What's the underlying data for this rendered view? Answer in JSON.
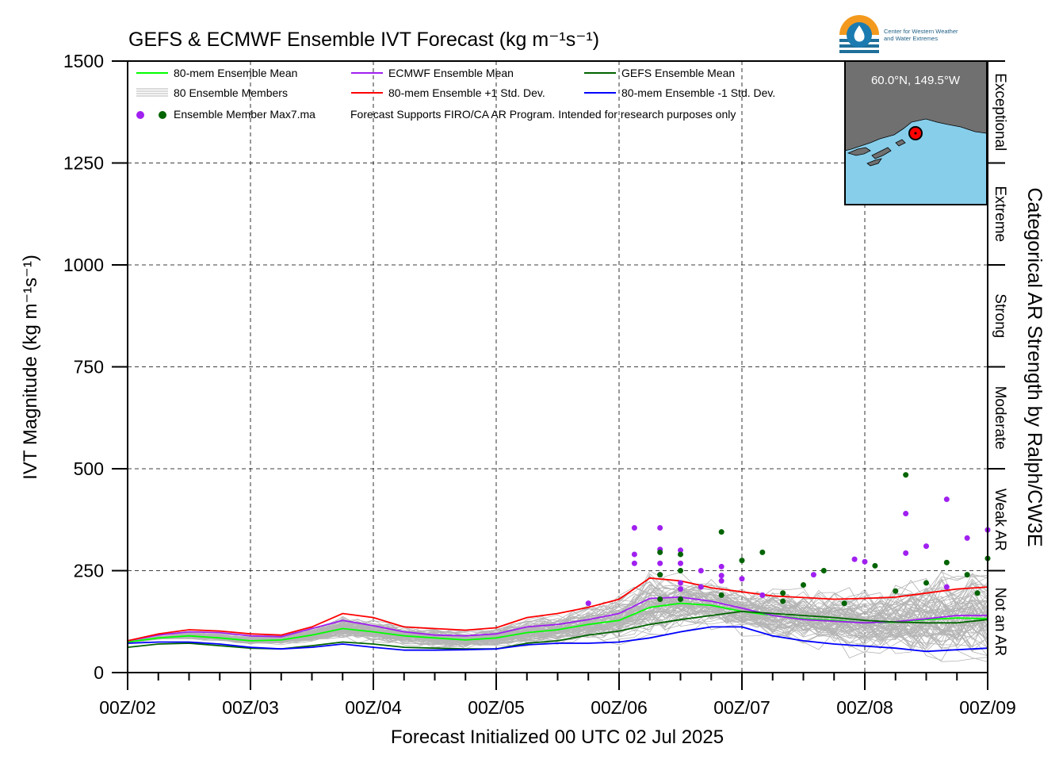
{
  "chart_data": {
    "type": "line",
    "title": "GEFS & ECMWF Ensemble IVT Forecast (kg m⁻¹s⁻¹)",
    "xlabel": "Forecast Initialized 00 UTC 02 Jul 2025",
    "ylabel": "IVT Magnitude (kg m⁻¹s⁻¹)",
    "y2label": "Categorical AR Strength by Ralph/CW3E",
    "xlim": [
      0,
      168
    ],
    "ylim": [
      0,
      1500
    ],
    "grid": true,
    "x_tick_values": [
      0,
      24,
      48,
      72,
      96,
      120,
      144,
      168
    ],
    "x_tick_labels": [
      "00Z/02",
      "00Z/03",
      "00Z/04",
      "00Z/05",
      "00Z/06",
      "00Z/07",
      "00Z/08",
      "00Z/09"
    ],
    "y_tick_values": [
      0,
      250,
      500,
      750,
      1000,
      1250,
      1500
    ],
    "y_tick_labels": [
      "0",
      "250",
      "500",
      "750",
      "1000",
      "1250",
      "1500"
    ],
    "categories_right": [
      {
        "label": "Not an AR",
        "from": 0,
        "to": 250
      },
      {
        "label": "Weak AR",
        "from": 250,
        "to": 500
      },
      {
        "label": "Moderate",
        "from": 500,
        "to": 750
      },
      {
        "label": "Strong",
        "from": 750,
        "to": 1000
      },
      {
        "label": "Extreme",
        "from": 1000,
        "to": 1250
      },
      {
        "label": "Exceptional",
        "from": 1250,
        "to": 1500
      }
    ],
    "x": [
      0,
      6,
      12,
      18,
      24,
      30,
      36,
      42,
      48,
      54,
      60,
      66,
      72,
      78,
      84,
      90,
      96,
      102,
      108,
      114,
      120,
      126,
      132,
      138,
      144,
      150,
      156,
      162,
      168
    ],
    "series": [
      {
        "name": "80-mem Ensemble Mean",
        "color": "#00ff00",
        "values": [
          75,
          85,
          90,
          85,
          78,
          80,
          92,
          108,
          100,
          90,
          85,
          80,
          85,
          98,
          105,
          118,
          128,
          160,
          170,
          165,
          150,
          140,
          132,
          128,
          122,
          124,
          130,
          134,
          132
        ]
      },
      {
        "name": "ECMWF Ensemble Mean",
        "color": "#a020f0",
        "values": [
          78,
          92,
          100,
          98,
          90,
          88,
          108,
          128,
          115,
          100,
          92,
          90,
          95,
          112,
          118,
          130,
          145,
          182,
          185,
          175,
          158,
          140,
          130,
          126,
          122,
          125,
          132,
          140,
          140
        ]
      },
      {
        "name": "GEFS Ensemble Mean",
        "color": "#006400",
        "values": [
          62,
          70,
          72,
          66,
          60,
          58,
          66,
          75,
          70,
          62,
          60,
          58,
          58,
          72,
          78,
          92,
          102,
          118,
          130,
          140,
          150,
          145,
          140,
          135,
          128,
          124,
          122,
          122,
          130
        ]
      },
      {
        "name": "80-mem Ensemble +1 Std. Dev.",
        "color": "#ff0000",
        "values": [
          78,
          95,
          105,
          102,
          95,
          92,
          112,
          145,
          135,
          112,
          108,
          104,
          110,
          135,
          145,
          160,
          180,
          232,
          225,
          208,
          198,
          188,
          184,
          180,
          182,
          185,
          195,
          205,
          210
        ]
      },
      {
        "name": "80-mem Ensemble -1 Std. Dev.",
        "color": "#0000ff",
        "values": [
          72,
          75,
          75,
          70,
          62,
          58,
          62,
          70,
          62,
          55,
          55,
          56,
          58,
          68,
          72,
          72,
          75,
          85,
          100,
          112,
          112,
          90,
          78,
          70,
          65,
          60,
          52,
          56,
          60
        ]
      }
    ],
    "members_label": "80 Ensemble Members",
    "members_color": "#b4b4b4",
    "member_max_label": "Ensemble Member Max7.ma",
    "member_max_points": {
      "purple": [
        [
          90,
          170
        ],
        [
          99,
          355
        ],
        [
          99,
          290
        ],
        [
          99,
          268
        ],
        [
          104,
          355
        ],
        [
          104,
          302
        ],
        [
          104,
          268
        ],
        [
          104,
          240
        ],
        [
          108,
          300
        ],
        [
          108,
          268
        ],
        [
          108,
          220
        ],
        [
          108,
          205
        ],
        [
          112,
          250
        ],
        [
          112,
          210
        ],
        [
          116,
          260
        ],
        [
          116,
          238
        ],
        [
          116,
          225
        ],
        [
          120,
          230
        ],
        [
          124,
          190
        ],
        [
          134,
          240
        ],
        [
          142,
          278
        ],
        [
          144,
          272
        ],
        [
          152,
          390
        ],
        [
          152,
          293
        ],
        [
          156,
          310
        ],
        [
          160,
          425
        ],
        [
          160,
          210
        ],
        [
          164,
          330
        ],
        [
          168,
          350
        ]
      ],
      "green": [
        [
          104,
          295
        ],
        [
          104,
          240
        ],
        [
          104,
          180
        ],
        [
          108,
          290
        ],
        [
          108,
          250
        ],
        [
          108,
          180
        ],
        [
          116,
          190
        ],
        [
          116,
          345
        ],
        [
          120,
          275
        ],
        [
          124,
          295
        ],
        [
          128,
          195
        ],
        [
          128,
          175
        ],
        [
          132,
          215
        ],
        [
          136,
          250
        ],
        [
          140,
          170
        ],
        [
          146,
          262
        ],
        [
          150,
          200
        ],
        [
          152,
          485
        ],
        [
          156,
          220
        ],
        [
          160,
          270
        ],
        [
          164,
          240
        ],
        [
          166,
          195
        ],
        [
          168,
          280
        ]
      ]
    },
    "legend": {
      "note": "Forecast Supports FIRO/CA AR Program. Intended for research purposes only"
    },
    "map_inset": {
      "location_label": "60.0°N, 149.5°W",
      "ocean_color": "#87ceeb",
      "land_color": "#707070"
    },
    "logo_text": [
      "Center for Western Weather",
      "and Water Extremes"
    ]
  }
}
